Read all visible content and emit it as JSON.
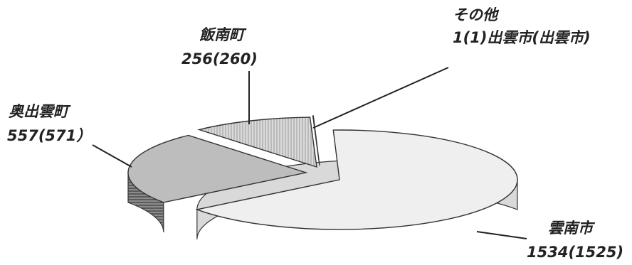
{
  "chart_data": {
    "type": "pie",
    "title": "",
    "three_d": true,
    "slices": [
      {
        "name": "雲南市",
        "value": 1534,
        "label": "1534(1525)",
        "color": "#efefef"
      },
      {
        "name": "奥出雲町",
        "value": 557,
        "label": "557(571）",
        "color": "#bdbdbd"
      },
      {
        "name": "飯南町",
        "value": 256,
        "label": "256(260)",
        "color": "#d4d4d4"
      },
      {
        "name": "その他",
        "value": 1,
        "label": "1(1)出雲市(出雲市)",
        "color": "#ffffff"
      }
    ]
  }
}
